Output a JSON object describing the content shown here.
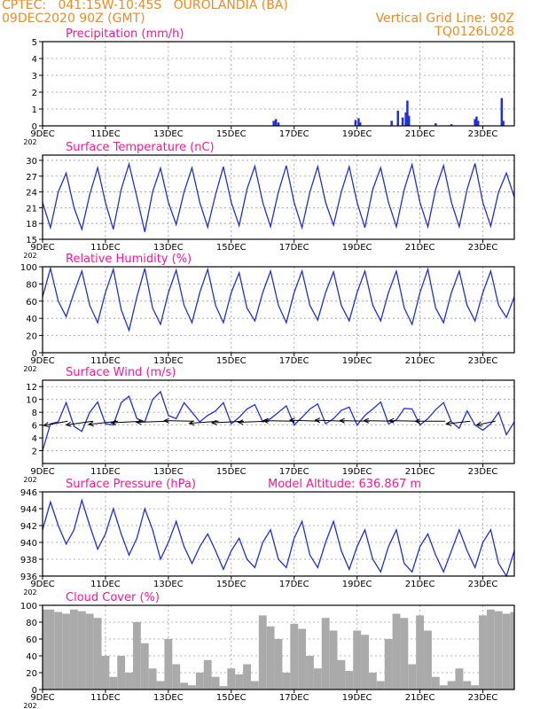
{
  "header": {
    "line1_left": "CPTEC:   041:15W-10:45S   OUROLANDIA (BA)",
    "line2_left": "09DEC2020 90Z (GMT)",
    "line1_right": "Vertical Grid Line: 90Z",
    "line2_right": "TQ0126L028"
  },
  "colors": {
    "header": "#f08a1e",
    "title": "#ff1493",
    "line": "#1f2fe0",
    "bar": "#aaaaaa",
    "wind_arrow": "#000000"
  },
  "x_axis": {
    "tick_labels": [
      "9DEC",
      "11DEC",
      "13DEC",
      "15DEC",
      "17DEC",
      "19DEC",
      "21DEC",
      "23DEC"
    ],
    "tick_days": [
      9,
      11,
      13,
      15,
      17,
      19,
      21,
      23
    ],
    "range_days": [
      9,
      24
    ],
    "truncated_year_label": "202"
  },
  "chart_data": [
    {
      "type": "bar",
      "title": "Precipitation (mm/h)",
      "ylim": [
        0,
        5
      ],
      "yticks": [
        0,
        1,
        2,
        3,
        4,
        5
      ],
      "grid": true,
      "x": [
        16.35,
        16.42,
        16.5,
        18.95,
        19.05,
        19.1,
        20.1,
        20.3,
        20.45,
        20.55,
        20.6,
        20.65,
        21.5,
        22.0,
        22.75,
        22.8,
        22.85,
        23.6,
        23.65
      ],
      "values": [
        0.3,
        0.4,
        0.2,
        0.35,
        0.45,
        0.2,
        0.3,
        0.9,
        0.5,
        0.8,
        1.5,
        0.6,
        0.15,
        0.1,
        0.4,
        0.55,
        0.3,
        1.65,
        0.3
      ]
    },
    {
      "type": "line",
      "title": "Surface Temperature (nC)",
      "ylim": [
        15,
        31
      ],
      "yticks": [
        15,
        18,
        21,
        24,
        27,
        30
      ],
      "grid": true,
      "x": [
        9.0,
        9.25,
        9.5,
        9.75,
        10.0,
        10.25,
        10.5,
        10.75,
        11.0,
        11.25,
        11.5,
        11.75,
        12.0,
        12.25,
        12.5,
        12.75,
        13.0,
        13.25,
        13.5,
        13.75,
        14.0,
        14.25,
        14.5,
        14.75,
        15.0,
        15.25,
        15.5,
        15.75,
        16.0,
        16.25,
        16.5,
        16.75,
        17.0,
        17.25,
        17.5,
        17.75,
        18.0,
        18.25,
        18.5,
        18.75,
        19.0,
        19.25,
        19.5,
        19.75,
        20.0,
        20.25,
        20.5,
        20.75,
        21.0,
        21.25,
        21.5,
        21.75,
        22.0,
        22.25,
        22.5,
        22.75,
        23.0,
        23.25,
        23.5,
        23.75,
        24.0
      ],
      "values": [
        22.0,
        17.2,
        24.0,
        27.6,
        21.0,
        16.9,
        23.5,
        28.6,
        22.0,
        16.9,
        24.5,
        29.3,
        23.0,
        16.4,
        24.0,
        28.5,
        22.0,
        17.8,
        24.0,
        28.6,
        22.0,
        17.3,
        23.5,
        28.8,
        22.0,
        17.6,
        24.5,
        28.9,
        22.0,
        17.4,
        24.0,
        29.0,
        22.0,
        17.2,
        24.0,
        28.8,
        22.0,
        17.7,
        24.0,
        28.8,
        22.0,
        17.2,
        24.5,
        28.6,
        22.0,
        17.4,
        24.5,
        29.2,
        22.0,
        17.4,
        24.5,
        29.0,
        22.0,
        17.4,
        24.5,
        29.4,
        22.0,
        17.5,
        24.0,
        27.6,
        23.0
      ]
    },
    {
      "type": "line",
      "title": "Relative Humidity (%)",
      "ylim": [
        0,
        100
      ],
      "yticks": [
        0,
        20,
        40,
        60,
        80,
        100
      ],
      "grid": true,
      "x": [
        9.0,
        9.25,
        9.5,
        9.75,
        10.0,
        10.25,
        10.5,
        10.75,
        11.0,
        11.25,
        11.5,
        11.75,
        12.0,
        12.25,
        12.5,
        12.75,
        13.0,
        13.25,
        13.5,
        13.75,
        14.0,
        14.25,
        14.5,
        14.75,
        15.0,
        15.25,
        15.5,
        15.75,
        16.0,
        16.25,
        16.5,
        16.75,
        17.0,
        17.25,
        17.5,
        17.75,
        18.0,
        18.25,
        18.5,
        18.75,
        19.0,
        19.25,
        19.5,
        19.75,
        20.0,
        20.25,
        20.5,
        20.75,
        21.0,
        21.25,
        21.5,
        21.75,
        22.0,
        22.25,
        22.5,
        22.75,
        23.0,
        23.25,
        23.5,
        23.75,
        24.0
      ],
      "values": [
        65,
        98,
        60,
        42,
        70,
        95,
        55,
        35,
        70,
        97,
        50,
        26,
        65,
        98,
        52,
        33,
        70,
        96,
        55,
        35,
        70,
        97,
        55,
        35,
        70,
        93,
        52,
        37,
        70,
        95,
        55,
        35,
        70,
        95,
        55,
        38,
        70,
        94,
        55,
        37,
        70,
        95,
        55,
        37,
        70,
        95,
        52,
        33,
        70,
        97,
        52,
        35,
        70,
        95,
        55,
        37,
        70,
        95,
        55,
        41,
        65
      ]
    },
    {
      "type": "line",
      "title": "Surface Wind (m/s)",
      "ylim": [
        0,
        13
      ],
      "yticks": [
        2,
        4,
        6,
        8,
        10,
        12
      ],
      "grid": true,
      "x": [
        9.0,
        9.25,
        9.5,
        9.75,
        10.0,
        10.25,
        10.5,
        10.75,
        11.0,
        11.25,
        11.5,
        11.75,
        12.0,
        12.25,
        12.5,
        12.75,
        13.0,
        13.25,
        13.5,
        13.75,
        14.0,
        14.25,
        14.5,
        14.75,
        15.0,
        15.25,
        15.5,
        15.75,
        16.0,
        16.25,
        16.5,
        16.75,
        17.0,
        17.25,
        17.5,
        17.75,
        18.0,
        18.25,
        18.5,
        18.75,
        19.0,
        19.25,
        19.5,
        19.75,
        20.0,
        20.25,
        20.5,
        20.75,
        21.0,
        21.25,
        21.5,
        21.75,
        22.0,
        22.25,
        22.5,
        22.75,
        23.0,
        23.25,
        23.5,
        23.75,
        24.0
      ],
      "values": [
        2.0,
        6.2,
        6.5,
        9.5,
        5.8,
        5.0,
        8.0,
        9.6,
        6.2,
        6.0,
        9.5,
        10.5,
        7.0,
        6.5,
        10.0,
        11.2,
        7.5,
        7.0,
        9.5,
        8.0,
        6.5,
        7.5,
        8.2,
        9.5,
        6.2,
        7.2,
        8.5,
        9.2,
        6.5,
        7.0,
        8.0,
        9.0,
        6.0,
        7.2,
        8.5,
        9.3,
        6.2,
        7.0,
        8.3,
        8.8,
        6.0,
        7.5,
        8.5,
        9.6,
        6.2,
        6.8,
        8.6,
        8.5,
        6.0,
        7.0,
        8.4,
        9.5,
        6.5,
        5.5,
        8.2,
        6.0,
        5.2,
        6.2,
        8.0,
        4.5,
        6.5
      ],
      "wind_vectors": {
        "x": [
          9.8,
          10.6,
          11.4,
          12.2,
          13.0,
          13.8,
          14.6,
          15.4,
          16.2,
          17.0,
          17.8,
          18.6,
          19.4,
          20.2,
          21.0,
          21.8,
          22.6,
          23.4
        ],
        "u": [
          -4.5,
          -5.0,
          -5.5,
          -6.0,
          -6.0,
          -5.5,
          -5.5,
          -6.0,
          -5.8,
          -5.8,
          -5.5,
          -5.5,
          -5.6,
          -5.8,
          -5.8,
          -5.6,
          -4.5,
          -3.5
        ],
        "v": [
          -0.8,
          -0.7,
          -0.6,
          -0.3,
          -0.2,
          0.1,
          -0.4,
          -0.3,
          -0.2,
          0.1,
          0.2,
          0.2,
          0.1,
          0.1,
          0.1,
          0.0,
          -0.5,
          -0.7
        ]
      }
    },
    {
      "type": "line",
      "title": "Surface Pressure (hPa)",
      "annotation": "Model Altitude: 636.867 m",
      "ylim": [
        936,
        946
      ],
      "yticks": [
        936,
        938,
        940,
        942,
        944,
        946
      ],
      "grid": true,
      "x": [
        9.0,
        9.25,
        9.5,
        9.75,
        10.0,
        10.25,
        10.5,
        10.75,
        11.0,
        11.25,
        11.5,
        11.75,
        12.0,
        12.25,
        12.5,
        12.75,
        13.0,
        13.25,
        13.5,
        13.75,
        14.0,
        14.25,
        14.5,
        14.75,
        15.0,
        15.25,
        15.5,
        15.75,
        16.0,
        16.25,
        16.5,
        16.75,
        17.0,
        17.25,
        17.5,
        17.75,
        18.0,
        18.25,
        18.5,
        18.75,
        19.0,
        19.25,
        19.5,
        19.75,
        20.0,
        20.25,
        20.5,
        20.75,
        21.0,
        21.25,
        21.5,
        21.75,
        22.0,
        22.25,
        22.5,
        22.75,
        23.0,
        23.25,
        23.5,
        23.75,
        24.0
      ],
      "values": [
        941.5,
        944.8,
        942.0,
        939.8,
        941.5,
        945.0,
        942.0,
        939.2,
        941.0,
        944.0,
        941.0,
        938.5,
        940.5,
        944.0,
        941.5,
        938.0,
        940.0,
        942.5,
        939.5,
        937.5,
        939.5,
        941.0,
        939.0,
        936.8,
        939.0,
        940.5,
        938.0,
        937.0,
        940.0,
        941.5,
        938.0,
        937.0,
        940.5,
        942.5,
        938.5,
        937.0,
        940.0,
        942.5,
        939.0,
        936.8,
        939.5,
        941.5,
        938.0,
        936.5,
        939.5,
        941.5,
        937.5,
        936.5,
        939.5,
        941.0,
        938.5,
        936.5,
        939.0,
        941.5,
        939.0,
        937.0,
        940.0,
        941.5,
        937.5,
        936.0,
        939.0
      ]
    },
    {
      "type": "bar",
      "title": "Cloud Cover (%)",
      "ylim": [
        0,
        100
      ],
      "yticks": [
        0,
        20,
        40,
        60,
        80,
        100
      ],
      "grid": true,
      "x": [
        9.0,
        9.25,
        9.5,
        9.75,
        10.0,
        10.25,
        10.5,
        10.75,
        11.0,
        11.25,
        11.5,
        11.75,
        12.0,
        12.25,
        12.5,
        12.75,
        13.0,
        13.25,
        13.5,
        13.75,
        14.0,
        14.25,
        14.5,
        14.75,
        15.0,
        15.25,
        15.5,
        15.75,
        16.0,
        16.25,
        16.5,
        16.75,
        17.0,
        17.25,
        17.5,
        17.75,
        18.0,
        18.25,
        18.5,
        18.75,
        19.0,
        19.25,
        19.5,
        19.75,
        20.0,
        20.25,
        20.5,
        20.75,
        21.0,
        21.25,
        21.5,
        21.75,
        22.0,
        22.25,
        22.5,
        22.75,
        23.0,
        23.25,
        23.5,
        23.75,
        24.0
      ],
      "values": [
        95,
        95,
        92,
        90,
        95,
        93,
        90,
        85,
        40,
        15,
        40,
        20,
        80,
        55,
        25,
        10,
        60,
        30,
        8,
        5,
        20,
        35,
        15,
        4,
        25,
        18,
        30,
        10,
        88,
        75,
        60,
        20,
        78,
        72,
        40,
        25,
        85,
        70,
        35,
        22,
        70,
        65,
        20,
        10,
        60,
        90,
        85,
        30,
        88,
        70,
        15,
        5,
        10,
        25,
        10,
        5,
        88,
        95,
        93,
        90,
        92
      ]
    }
  ]
}
